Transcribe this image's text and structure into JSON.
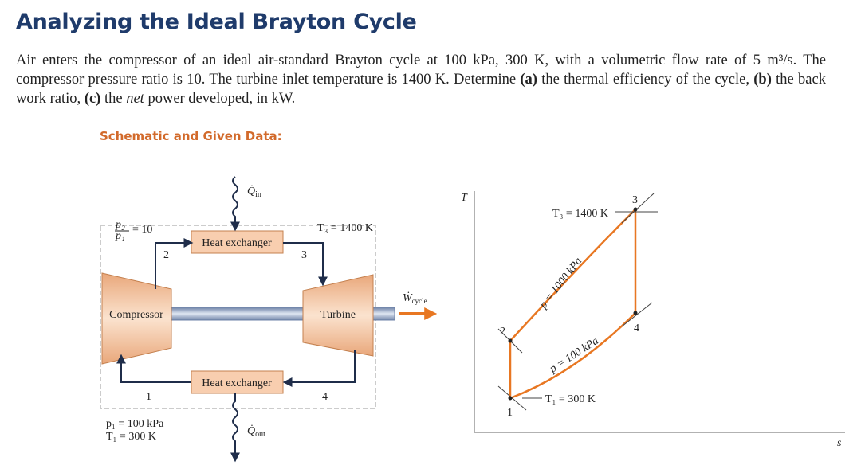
{
  "header": {
    "title": "Analyzing the Ideal Brayton Cycle"
  },
  "problem": [
    "Air enters the compressor of an ideal air-standard Brayton cycle at 100 kPa, 300 K, with a volumetric flow rate of 5 m³/s. The compressor pressure ratio is 10. The turbine inlet temperature is 1400 K. Determine ",
    "(a)",
    " the thermal efficiency of the cycle, ",
    "(b)",
    " the back work ratio, ",
    "(c)",
    " the ",
    "net",
    " power developed, in kW."
  ],
  "subtitle": "Schematic and Given Data:",
  "schematic": {
    "ratio": {
      "num": "p₂",
      "den": "p₁",
      "value": "= 10"
    },
    "compressor": "Compressor",
    "turbine": "Turbine",
    "heat_exchanger_top": "Heat exchanger",
    "heat_exchanger_bottom": "Heat exchanger",
    "q_in": {
      "symbol": "Q̇",
      "sub": "in"
    },
    "q_out": {
      "symbol": "Q̇",
      "sub": "out"
    },
    "w_cycle": {
      "symbol": "Ẇ",
      "sub": "cycle"
    },
    "t3": "T₃ = 1400 K",
    "state_labels": [
      "1",
      "2",
      "3",
      "4"
    ],
    "given": [
      "p₁ = 100 kPa",
      "T₁ = 300 K"
    ]
  },
  "ts_diagram": {
    "y_axis": "T",
    "x_axis": "s",
    "t3": "T₃ = 1400 K",
    "t1": "T₁ = 300 K",
    "p_high": "p = 1000 kPa",
    "p_low": "p = 100 kPa",
    "points": [
      "1",
      "2",
      "3",
      "4"
    ]
  }
}
